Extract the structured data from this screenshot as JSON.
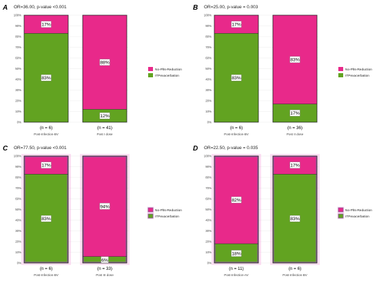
{
  "colors": {
    "reduction": "#e8298a",
    "exacerbation": "#62a321",
    "halo": "#f7a6dc",
    "halo_frame": "#8a5a9c"
  },
  "chart_data": [
    {
      "panel": "A",
      "title": "OR=36.00, p-value <0.001",
      "type": "bar",
      "stacked": true,
      "percent": true,
      "yticks": [
        "0%",
        "10%",
        "20%",
        "30%",
        "40%",
        "50%",
        "60%",
        "70%",
        "80%",
        "90%",
        "100%"
      ],
      "ylim": [
        0,
        100
      ],
      "grid": true,
      "legend_position": "right",
      "highlighted": false,
      "legend": [
        "No-Plts-Reduction",
        "ITPexacerbation"
      ],
      "categories": [
        "Post-Infection-BV",
        "Post I dose"
      ],
      "n_labels": [
        "(n = 6)",
        "(n = 41)"
      ],
      "series": [
        {
          "name": "No-Plts-Reduction",
          "values": [
            17,
            88
          ],
          "labels": [
            "17%",
            "88%"
          ]
        },
        {
          "name": "ITPexacerbation",
          "values": [
            83,
            12
          ],
          "labels": [
            "83%",
            "12%"
          ]
        }
      ]
    },
    {
      "panel": "B",
      "title": "OR=25.00, p-value = 0.003",
      "type": "bar",
      "stacked": true,
      "percent": true,
      "yticks": [
        "0%",
        "10%",
        "20%",
        "30%",
        "40%",
        "50%",
        "60%",
        "70%",
        "80%",
        "90%",
        "100%"
      ],
      "ylim": [
        0,
        100
      ],
      "grid": true,
      "legend_position": "right",
      "highlighted": false,
      "legend": [
        "No-Plts-Reduction",
        "ITPexacerbation"
      ],
      "categories": [
        "Post-Infection-BV",
        "Post II dose"
      ],
      "n_labels": [
        "(n = 6)",
        "(n = 36)"
      ],
      "series": [
        {
          "name": "No-Plts-Reduction",
          "values": [
            17,
            83
          ],
          "labels": [
            "17%",
            "83%"
          ]
        },
        {
          "name": "ITPexacerbation",
          "values": [
            83,
            17
          ],
          "labels": [
            "83%",
            "17%"
          ]
        }
      ]
    },
    {
      "panel": "C",
      "title": "OR=77.50, p-value <0.001",
      "type": "bar",
      "stacked": true,
      "percent": true,
      "yticks": [
        "0%",
        "10%",
        "20%",
        "30%",
        "40%",
        "50%",
        "60%",
        "70%",
        "80%",
        "90%",
        "100%"
      ],
      "ylim": [
        0,
        100
      ],
      "grid": true,
      "legend_position": "right",
      "highlighted": true,
      "legend": [
        "No-Plts-Reduction",
        "ITPexacerbation"
      ],
      "categories": [
        "Post-Infection-BV",
        "Post III dose"
      ],
      "n_labels": [
        "(n = 6)",
        "(n = 33)"
      ],
      "series": [
        {
          "name": "No-Plts-Reduction",
          "values": [
            17,
            94
          ],
          "labels": [
            "17%",
            "94%"
          ]
        },
        {
          "name": "ITPexacerbation",
          "values": [
            83,
            6
          ],
          "labels": [
            "83%",
            "6%"
          ]
        }
      ]
    },
    {
      "panel": "D",
      "title": "OR=22.50, p-value = 0.035",
      "type": "bar",
      "stacked": true,
      "percent": true,
      "yticks": [
        "0%",
        "10%",
        "20%",
        "30%",
        "40%",
        "50%",
        "60%",
        "70%",
        "80%",
        "90%",
        "100%"
      ],
      "ylim": [
        0,
        100
      ],
      "grid": true,
      "legend_position": "right",
      "highlighted": true,
      "legend": [
        "No-Plts-Reduction",
        "ITPexacerbation"
      ],
      "categories": [
        "Post-Infection-AV",
        "Post-Infection-BV"
      ],
      "n_labels": [
        "(n = 11)",
        "(n = 6)"
      ],
      "series": [
        {
          "name": "No-Plts-Reduction",
          "values": [
            82,
            17
          ],
          "labels": [
            "82%",
            "17%"
          ]
        },
        {
          "name": "ITPexacerbation",
          "values": [
            18,
            83
          ],
          "labels": [
            "18%",
            "83%"
          ]
        }
      ]
    }
  ]
}
